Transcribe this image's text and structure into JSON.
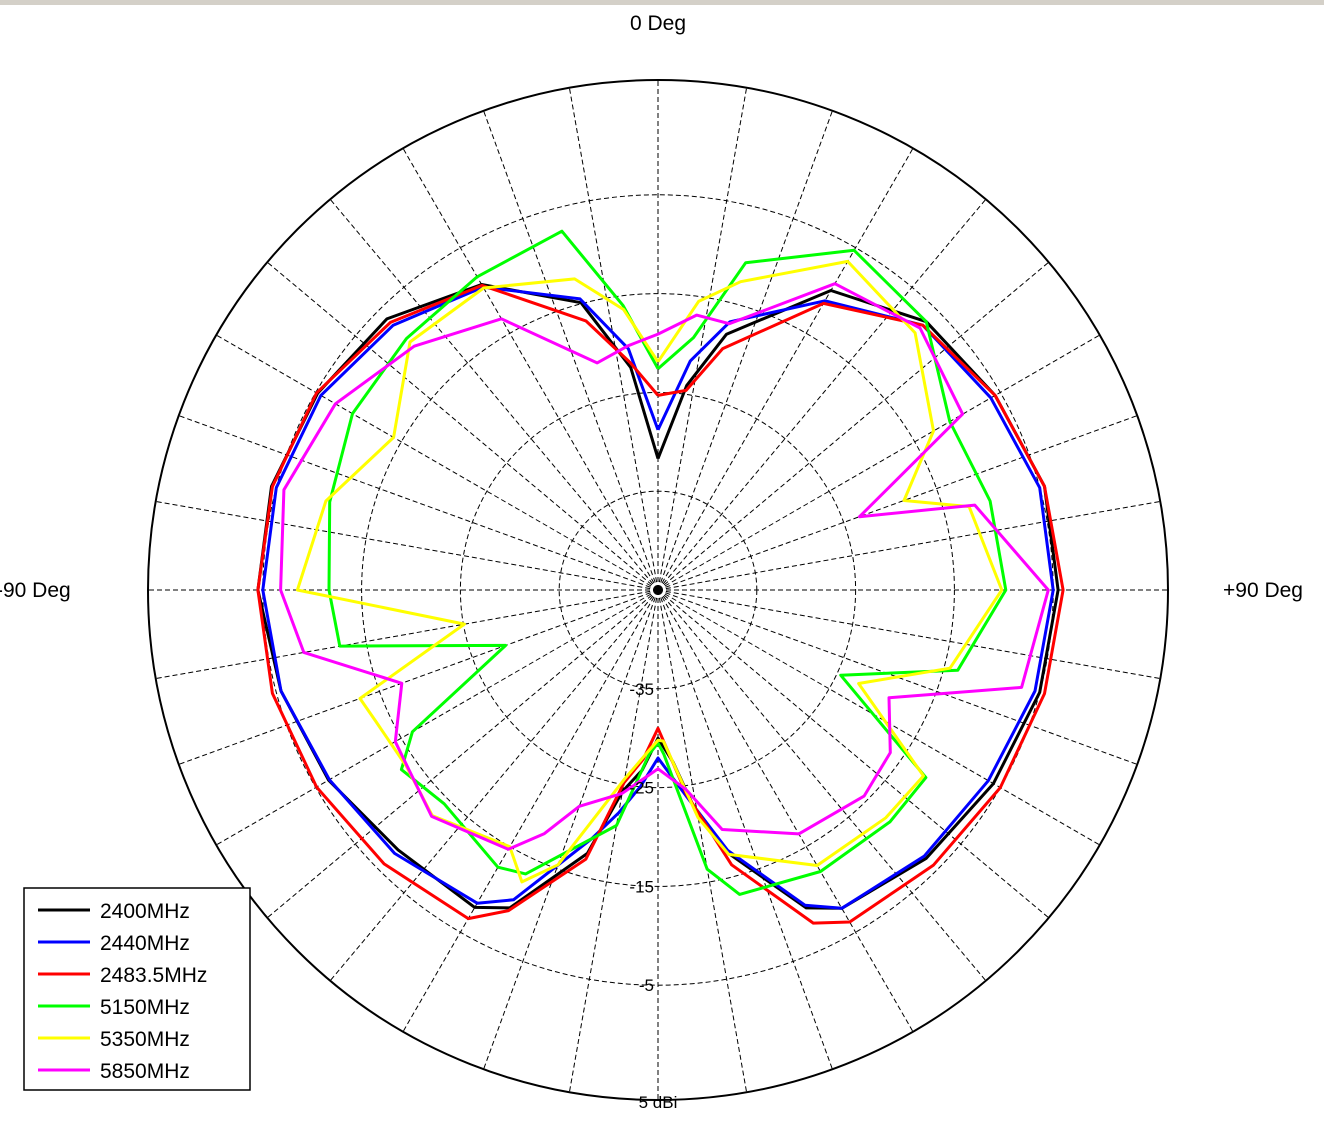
{
  "chart_data": {
    "type": "polar-line",
    "angle_labels": {
      "top": "0 Deg",
      "left": "-90 Deg",
      "right": "+90 Deg"
    },
    "ring_labels": [
      "-35",
      "-25",
      "-15",
      "-5",
      "5 dBi"
    ],
    "r_range_dbi": [
      -45,
      5
    ],
    "angle_range_deg": [
      -180,
      180
    ],
    "grid": true,
    "legend_position": "bottom-left",
    "series": [
      {
        "name": "2400MHz",
        "color": "#000000",
        "points": [
          [
            0,
            -31.7
          ],
          [
            8,
            -24.1
          ],
          [
            15,
            -18.2
          ],
          [
            30,
            -10
          ],
          [
            45,
            -6.6
          ],
          [
            60,
            -5.6
          ],
          [
            75,
            -4.5
          ],
          [
            90,
            -4.5
          ],
          [
            105,
            -5
          ],
          [
            120,
            -5.8
          ],
          [
            135,
            -6.6
          ],
          [
            150,
            -7.8
          ],
          [
            155,
            -9.5
          ],
          [
            165,
            -17.4
          ],
          [
            170,
            -21.8
          ],
          [
            175,
            -27.5
          ],
          [
            180,
            -30
          ],
          [
            185,
            -26.7
          ],
          [
            190,
            -24.3
          ],
          [
            195,
            -17.4
          ],
          [
            205,
            -9.5
          ],
          [
            210,
            -7.9
          ],
          [
            225,
            -7.8
          ],
          [
            240,
            -6.5
          ],
          [
            255,
            -5.5
          ],
          [
            270,
            -4.5
          ],
          [
            285,
            -4.5
          ],
          [
            300,
            -5.2
          ],
          [
            315,
            -6.2
          ],
          [
            330,
            -9.3
          ],
          [
            345,
            -14.9
          ],
          [
            353,
            -22.3
          ],
          [
            360,
            -31.7
          ]
        ]
      },
      {
        "name": "2440MHz",
        "color": "#0000ff",
        "points": [
          [
            0,
            -28.8
          ],
          [
            8,
            -21.6
          ],
          [
            15,
            -16.9
          ],
          [
            30,
            -11.2
          ],
          [
            45,
            -7.1
          ],
          [
            60,
            -6.1
          ],
          [
            75,
            -5
          ],
          [
            90,
            -5
          ],
          [
            105,
            -5.5
          ],
          [
            120,
            -6.4
          ],
          [
            135,
            -6.9
          ],
          [
            150,
            -7.8
          ],
          [
            155,
            -9.8
          ],
          [
            165,
            -17.7
          ],
          [
            172,
            -23.8
          ],
          [
            180,
            -28
          ],
          [
            185,
            -25.1
          ],
          [
            190,
            -22.1
          ],
          [
            195,
            -18.9
          ],
          [
            205,
            -10.4
          ],
          [
            210,
            -8.4
          ],
          [
            225,
            -7.3
          ],
          [
            240,
            -6.6
          ],
          [
            255,
            -5.5
          ],
          [
            270,
            -5
          ],
          [
            285,
            -5
          ],
          [
            300,
            -5.6
          ],
          [
            315,
            -7.1
          ],
          [
            330,
            -9.6
          ],
          [
            345,
            -14.5
          ],
          [
            353,
            -20.4
          ],
          [
            360,
            -28.8
          ]
        ]
      },
      {
        "name": "2483.5MHz",
        "color": "#ff0000",
        "points": [
          [
            0,
            -25.3
          ],
          [
            8,
            -24.6
          ],
          [
            15,
            -19.7
          ],
          [
            30,
            -11.5
          ],
          [
            45,
            -7.1
          ],
          [
            60,
            -5.6
          ],
          [
            75,
            -4.5
          ],
          [
            90,
            -4
          ],
          [
            105,
            -4.5
          ],
          [
            120,
            -5
          ],
          [
            135,
            -5.6
          ],
          [
            150,
            -6.2
          ],
          [
            155,
            -7.8
          ],
          [
            165,
            -16.2
          ],
          [
            172,
            -24.1
          ],
          [
            180,
            -31
          ],
          [
            185,
            -27.8
          ],
          [
            190,
            -25.2
          ],
          [
            195,
            -16.8
          ],
          [
            205,
            -9.2
          ],
          [
            210,
            -6.6
          ],
          [
            225,
            -5.8
          ],
          [
            240,
            -5.1
          ],
          [
            255,
            -4.6
          ],
          [
            270,
            -4.5
          ],
          [
            285,
            -4.6
          ],
          [
            300,
            -5.1
          ],
          [
            315,
            -6.7
          ],
          [
            330,
            -9.4
          ],
          [
            345,
            -16.8
          ],
          [
            353,
            -21.8
          ],
          [
            360,
            -25.3
          ]
        ]
      },
      {
        "name": "5150MHz",
        "color": "#00ff00",
        "points": [
          [
            0,
            -22.6
          ],
          [
            8,
            -19.2
          ],
          [
            15,
            -10.7
          ],
          [
            30,
            -5.3
          ],
          [
            45,
            -6.6
          ],
          [
            60,
            -10.9
          ],
          [
            75,
            -10.2
          ],
          [
            90,
            -9.8
          ],
          [
            105,
            -13.6
          ],
          [
            115,
            -24.6
          ],
          [
            125,
            -11.9
          ],
          [
            135,
            -11.8
          ],
          [
            150,
            -12.1
          ],
          [
            165,
            -13.1
          ],
          [
            170,
            -16.3
          ],
          [
            178,
            -28.4
          ],
          [
            180,
            -29.5
          ],
          [
            183,
            -28.4
          ],
          [
            190,
            -20.8
          ],
          [
            205,
            -13.3
          ],
          [
            210,
            -12.6
          ],
          [
            225,
            -14.4
          ],
          [
            235,
            -13.3
          ],
          [
            240,
            -16.3
          ],
          [
            250,
            -28.6
          ],
          [
            260,
            -12.3
          ],
          [
            270,
            -11.7
          ],
          [
            285,
            -10.6
          ],
          [
            300,
            -9.3
          ],
          [
            315,
            -9
          ],
          [
            330,
            -8.4
          ],
          [
            345,
            -7.4
          ],
          [
            353,
            -16
          ],
          [
            360,
            -22.6
          ]
        ]
      },
      {
        "name": "5350MHz",
        "color": "#ffff00",
        "points": [
          [
            0,
            -21.9
          ],
          [
            8,
            -15.5
          ],
          [
            15,
            -12.7
          ],
          [
            30,
            -6.6
          ],
          [
            45,
            -8.2
          ],
          [
            60,
            -12.8
          ],
          [
            70,
            -18.5
          ],
          [
            75,
            -12.4
          ],
          [
            90,
            -10.2
          ],
          [
            105,
            -14.4
          ],
          [
            115,
            -22.6
          ],
          [
            125,
            -12.2
          ],
          [
            135,
            -12.4
          ],
          [
            150,
            -12.8
          ],
          [
            165,
            -17.3
          ],
          [
            170,
            -21.6
          ],
          [
            178,
            -29.7
          ],
          [
            180,
            -29.8
          ],
          [
            183,
            -28.8
          ],
          [
            190,
            -25.6
          ],
          [
            200,
            -15.4
          ],
          [
            205,
            -12.4
          ],
          [
            210,
            -15
          ],
          [
            225,
            -12.7
          ],
          [
            235,
            -13.9
          ],
          [
            245,
            -13.5
          ],
          [
            250,
            -12.9
          ],
          [
            260,
            -25.1
          ],
          [
            270,
            -8.5
          ],
          [
            285,
            -10.2
          ],
          [
            300,
            -14.1
          ],
          [
            315,
            -9.5
          ],
          [
            330,
            -9.7
          ],
          [
            345,
            -12.4
          ],
          [
            353,
            -16.4
          ],
          [
            360,
            -21.9
          ]
        ]
      },
      {
        "name": "5850MHz",
        "color": "#ff00ff",
        "points": [
          [
            0,
            -19.1
          ],
          [
            8,
            -16.9
          ],
          [
            15,
            -17.1
          ],
          [
            30,
            -9.2
          ],
          [
            45,
            -7.5
          ],
          [
            60,
            -9.4
          ],
          [
            70,
            -23.3
          ],
          [
            75,
            -11.8
          ],
          [
            90,
            -5.5
          ],
          [
            105,
            -6.9
          ],
          [
            115,
            -19.2
          ],
          [
            125,
            -16.3
          ],
          [
            135,
            -15.5
          ],
          [
            150,
            -16.5
          ],
          [
            165,
            -19.9
          ],
          [
            172,
            -24.6
          ],
          [
            180,
            -26.9
          ],
          [
            183,
            -26.2
          ],
          [
            190,
            -24.1
          ],
          [
            200,
            -21.7
          ],
          [
            205,
            -17.8
          ],
          [
            210,
            -14.7
          ],
          [
            225,
            -12.6
          ],
          [
            240,
            -14.3
          ],
          [
            250,
            -17.4
          ],
          [
            260,
            -8.6
          ],
          [
            270,
            -6.8
          ],
          [
            285,
            -5.8
          ],
          [
            300,
            -7.3
          ],
          [
            315,
            -10.1
          ],
          [
            330,
            -13.3
          ],
          [
            345,
            -21.2
          ],
          [
            353,
            -20.1
          ],
          [
            360,
            -19.1
          ]
        ]
      }
    ]
  }
}
